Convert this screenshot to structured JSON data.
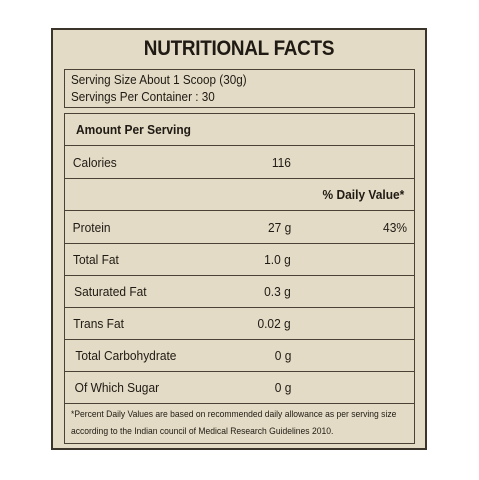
{
  "title": "NUTRITIONAL FACTS",
  "serving": {
    "size": "Serving Size About 1 Scoop (30g)",
    "per_container": "Servings Per Container : 30"
  },
  "amount_per_serving": "Amount Per Serving",
  "calories": {
    "label": "Calories",
    "value": "116"
  },
  "daily_value_header": "% Daily Value*",
  "nutrients": [
    {
      "name": "Protein",
      "amount": "27 g",
      "dv": "43%"
    },
    {
      "name": "Total Fat",
      "amount": "1.0 g",
      "dv": ""
    },
    {
      "name": "Saturated Fat",
      "amount": "0.3 g",
      "dv": ""
    },
    {
      "name": "Trans Fat",
      "amount": "0.02 g",
      "dv": ""
    },
    {
      "name": "Total Carbohydrate",
      "amount": "0 g",
      "dv": ""
    },
    {
      "name": "Of Which Sugar",
      "amount": "0 g",
      "dv": ""
    }
  ],
  "footnote": {
    "line1": "*Percent Daily Values are based on recommended daily allowance as per serving size",
    "line2": "according to the Indian council of Medical Research Guidelines 2010."
  },
  "colors": {
    "background": "#e3dbc5",
    "border": "#3a342a",
    "text": "#1f1a14"
  }
}
